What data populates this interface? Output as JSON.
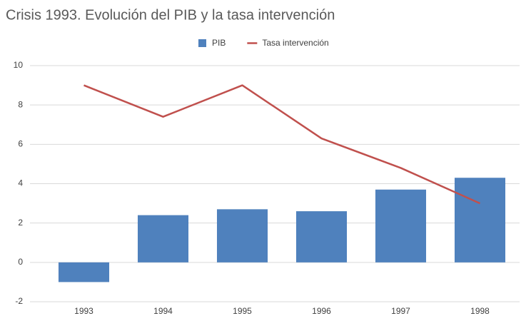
{
  "chart_data": {
    "type": "bar",
    "title": "Crisis 1993. Evolución del PIB y la tasa intervención",
    "categories": [
      "1993",
      "1994",
      "1995",
      "1996",
      "1997",
      "1998"
    ],
    "series": [
      {
        "name": "PIB",
        "type": "bar",
        "color": "#4f81bd",
        "values": [
          -1.0,
          2.4,
          2.7,
          2.6,
          3.7,
          4.3
        ]
      },
      {
        "name": "Tasa intervención",
        "type": "line",
        "color": "#c0504d",
        "values": [
          9.0,
          7.4,
          9.0,
          6.3,
          4.8,
          3.0
        ]
      }
    ],
    "ylim": [
      -2,
      10
    ],
    "yticks": [
      -2,
      0,
      2,
      4,
      6,
      8,
      10
    ],
    "grid": true,
    "legend": "top"
  }
}
